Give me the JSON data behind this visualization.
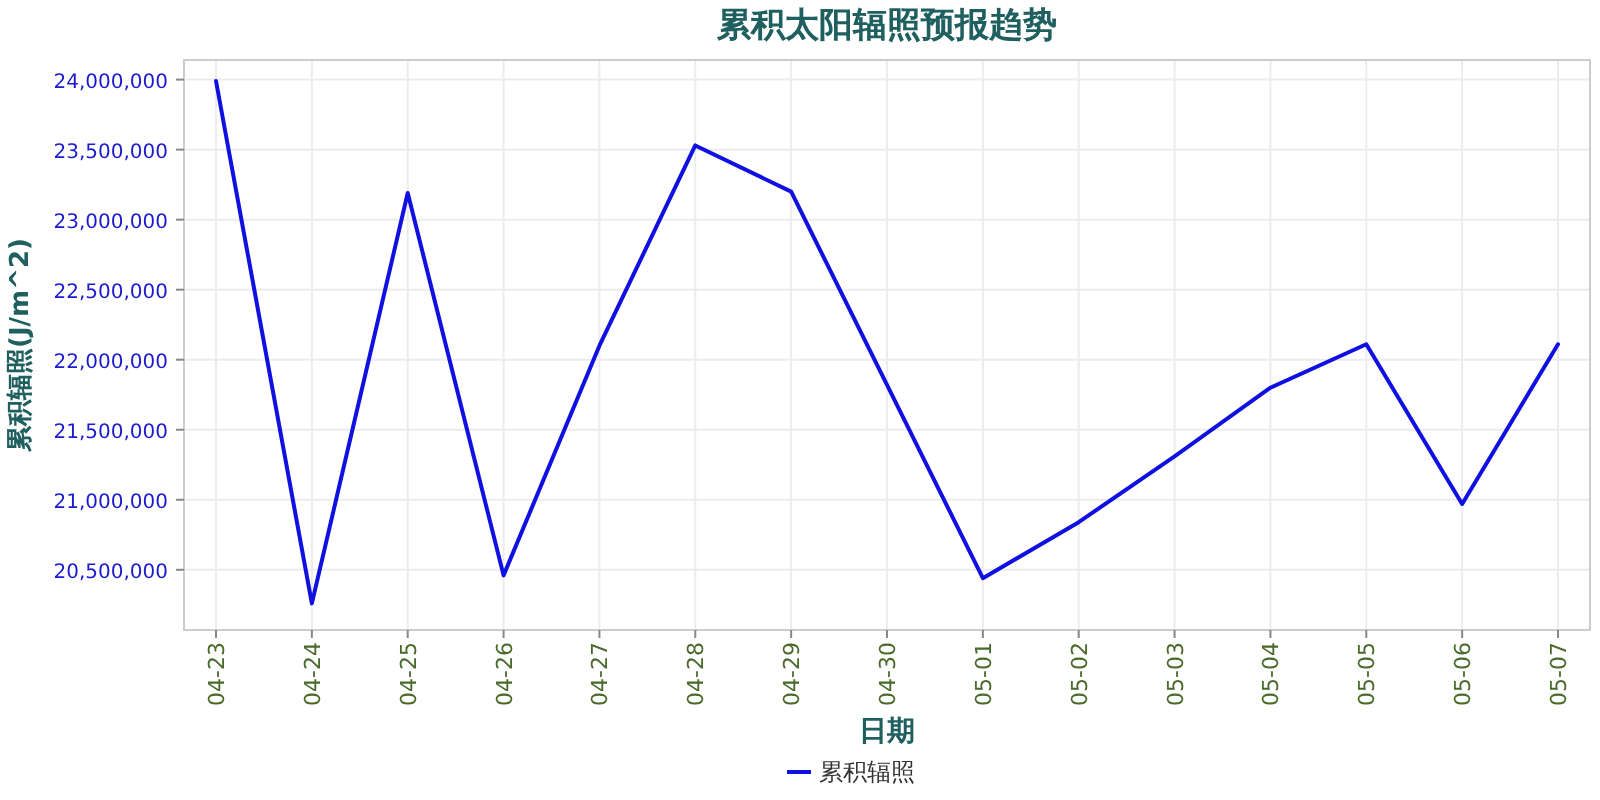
{
  "chart_data": {
    "type": "line",
    "title": "累积太阳辐照预报趋势",
    "xlabel": "日期",
    "ylabel": "累积辐照(J/m^2)",
    "categories": [
      "04-23",
      "04-24",
      "04-25",
      "04-26",
      "04-27",
      "04-28",
      "04-29",
      "04-30",
      "05-01",
      "05-02",
      "05-03",
      "05-04",
      "05-05",
      "05-06",
      "05-07"
    ],
    "series": [
      {
        "name": "累积辐照",
        "color": "#1010e0",
        "values": [
          23990000,
          20260000,
          23190000,
          20460000,
          22100000,
          23530000,
          23200000,
          21820000,
          20440000,
          20840000,
          21310000,
          21800000,
          22110000,
          20970000,
          22110000
        ]
      }
    ],
    "ylim": [
      20070000,
      24140000
    ],
    "yticks": [
      {
        "value": 20500000,
        "label": "20,500,000"
      },
      {
        "value": 21000000,
        "label": "21,000,000"
      },
      {
        "value": 21500000,
        "label": "21,500,000"
      },
      {
        "value": 22000000,
        "label": "22,000,000"
      },
      {
        "value": 22500000,
        "label": "22,500,000"
      },
      {
        "value": 23000000,
        "label": "23,000,000"
      },
      {
        "value": 23500000,
        "label": "23,500,000"
      },
      {
        "value": 24000000,
        "label": "24,000,000"
      }
    ],
    "grid": true,
    "legend": "bottom",
    "marker": "none",
    "line_style": "solid"
  }
}
